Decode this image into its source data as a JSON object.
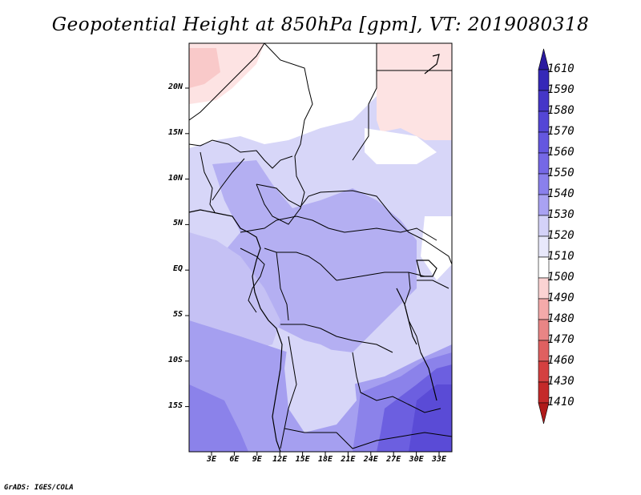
{
  "title": "Geopotential Height at 850hPa [gpm], VT: 2019080318",
  "credit": "GrADS: IGES/COLA",
  "map": {
    "lat_labels": [
      "20N",
      "15N",
      "10N",
      "5N",
      "EQ",
      "5S",
      "10S",
      "15S"
    ],
    "lon_labels": [
      "3E",
      "6E",
      "9E",
      "12E",
      "15E",
      "18E",
      "21E",
      "24E",
      "27E",
      "30E",
      "33E"
    ]
  },
  "colorbar": {
    "labels": [
      "1610",
      "1590",
      "1580",
      "1570",
      "1560",
      "1550",
      "1540",
      "1530",
      "1520",
      "1510",
      "1500",
      "1490",
      "1480",
      "1470",
      "1460",
      "1430",
      "1410"
    ],
    "colors": [
      "#2a1aa0",
      "#3528b8",
      "#4536c8",
      "#5446d6",
      "#6457e0",
      "#7568e6",
      "#8a80ec",
      "#a9a2f2",
      "#d4d2f8",
      "#e8e8fb",
      "#ffffff",
      "#fbd3d3",
      "#f4aaaa",
      "#e98585",
      "#df6060",
      "#d44040",
      "#c42a2a",
      "#b01a1a"
    ]
  }
}
